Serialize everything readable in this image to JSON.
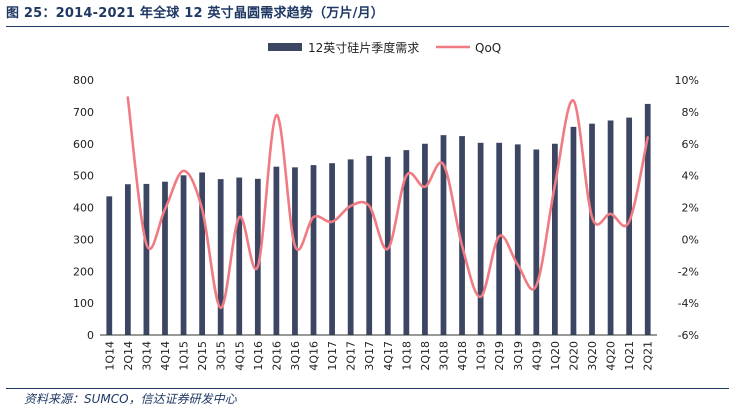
{
  "header": {
    "title": "图 25：2014-2021 年全球 12 英寸晶圆需求趋势（万片/月）"
  },
  "footer": {
    "source": "资料来源：SUMCO，信达证券研发中心"
  },
  "colors": {
    "bar": "#3c4663",
    "line": "#f07b83",
    "axis": "#333333",
    "text": "#222222",
    "title": "#1f3864"
  },
  "chart_data": {
    "type": "bar",
    "title": "",
    "xlabel": "",
    "ylabel": "",
    "legend_position": "top",
    "categories": [
      "1Q14",
      "2Q14",
      "3Q14",
      "4Q14",
      "1Q15",
      "2Q15",
      "3Q15",
      "4Q15",
      "1Q16",
      "2Q16",
      "3Q16",
      "4Q16",
      "1Q17",
      "2Q17",
      "3Q17",
      "4Q17",
      "1Q18",
      "2Q18",
      "3Q18",
      "4Q18",
      "1Q19",
      "2Q19",
      "3Q19",
      "4Q19",
      "1Q20",
      "2Q20",
      "3Q20",
      "4Q20",
      "1Q21",
      "2Q21"
    ],
    "series": [
      {
        "name": "12英寸硅片季度需求",
        "type": "bar",
        "axis": "left",
        "values": [
          435,
          473,
          474,
          481,
          501,
          510,
          489,
          494,
          490,
          528,
          526,
          533,
          539,
          551,
          562,
          559,
          580,
          600,
          627,
          624,
          603,
          603,
          598,
          582,
          600,
          653,
          663,
          673,
          682,
          725
        ]
      },
      {
        "name": "QoQ",
        "type": "line",
        "axis": "right",
        "unit": "%",
        "values": [
          null,
          8.9,
          -0.3,
          1.9,
          4.3,
          1.9,
          -4.3,
          1.4,
          -1.7,
          7.8,
          -0.4,
          1.4,
          1.1,
          2.1,
          2.1,
          -0.6,
          4.0,
          3.3,
          4.7,
          -0.4,
          -3.6,
          0.2,
          -1.6,
          -2.9,
          3.4,
          8.7,
          1.4,
          1.6,
          1.1,
          6.4
        ]
      }
    ],
    "y_left": {
      "ylim": [
        0,
        800
      ],
      "ticks": [
        "0",
        "100",
        "200",
        "300",
        "400",
        "500",
        "600",
        "700",
        "800"
      ]
    },
    "y_right": {
      "ylim": [
        -6,
        10
      ],
      "ticks": [
        "-6%",
        "-4%",
        "-2%",
        "0%",
        "2%",
        "4%",
        "6%",
        "8%",
        "10%"
      ]
    }
  }
}
